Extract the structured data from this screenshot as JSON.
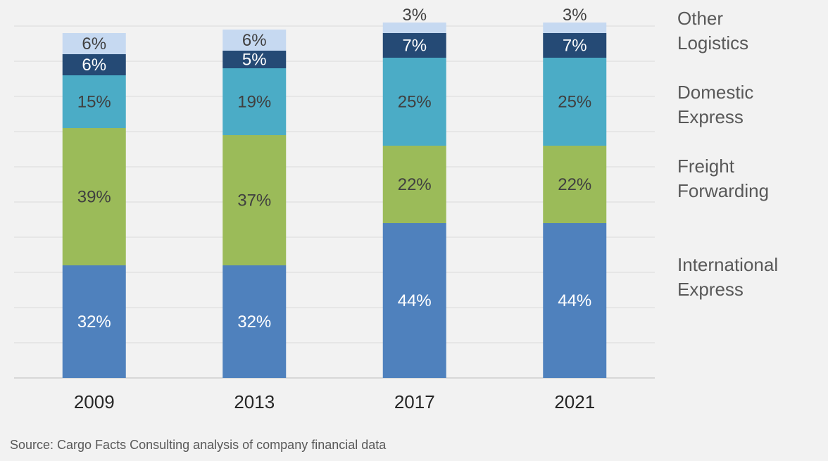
{
  "chart_data": {
    "type": "bar",
    "stacked": true,
    "percent": true,
    "categories": [
      "2009",
      "2013",
      "2017",
      "2021"
    ],
    "series": [
      {
        "name": "International Express",
        "color": "#4f81bd",
        "label_color": "#ffffff",
        "values": [
          32,
          32,
          44,
          44
        ]
      },
      {
        "name": "Freight Forwarding",
        "color": "#9bbb59",
        "label_color": "#404040",
        "values": [
          39,
          37,
          22,
          22
        ]
      },
      {
        "name": "Domestic Express",
        "color": "#4bacc6",
        "label_color": "#404040",
        "values": [
          15,
          19,
          25,
          25
        ]
      },
      {
        "name": "",
        "color": "#254a75",
        "label_color": "#ffffff",
        "values": [
          6,
          5,
          7,
          7
        ]
      },
      {
        "name": "Other Logistics",
        "color": "#c6d9f1",
        "label_color": "#404040",
        "values": [
          6,
          6,
          3,
          3
        ]
      }
    ],
    "labels": [
      [
        "32%",
        "39%",
        "15%",
        "6%",
        "6%"
      ],
      [
        "32%",
        "37%",
        "19%",
        "5%",
        "6%"
      ],
      [
        "44%",
        "22%",
        "25%",
        "7%",
        "3%"
      ],
      [
        "44%",
        "22%",
        "25%",
        "7%",
        "3%"
      ]
    ],
    "legend_lines": [
      [
        "Other",
        "Logistics"
      ],
      [
        "Domestic",
        "Express"
      ],
      [
        "Freight",
        "Forwarding"
      ],
      [
        "International",
        "Express"
      ]
    ],
    "legend_position": "right",
    "ylim": [
      0,
      100
    ],
    "grid": true,
    "title": "",
    "xlabel": "",
    "ylabel": ""
  },
  "source_note": "Source: Cargo Facts Consulting analysis of company financial data"
}
